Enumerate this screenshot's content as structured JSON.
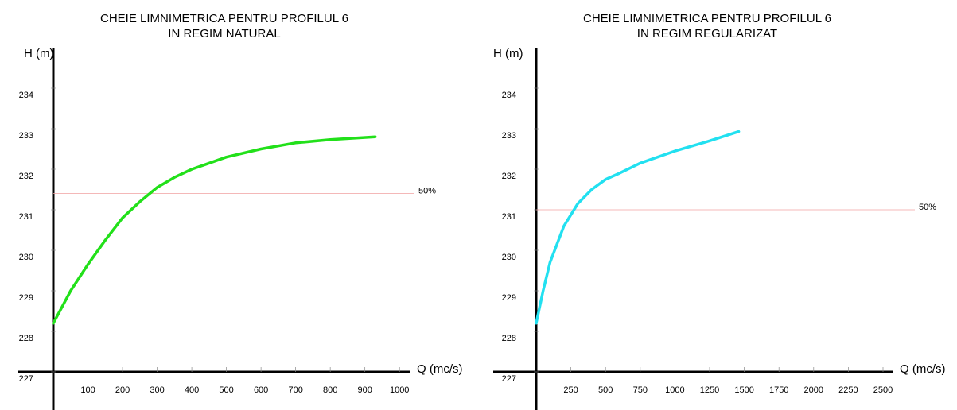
{
  "chart_data": [
    {
      "type": "line",
      "title": [
        "CHEIE LIMNIMETRICA PENTRU PROFILUL 6",
        "IN REGIM NATURAL"
      ],
      "ylabel": "H (m)",
      "xlabel": "Q (mc/s)",
      "xlim": [
        0,
        1100
      ],
      "ylim": [
        227,
        235
      ],
      "x_ticks": [
        100,
        200,
        300,
        400,
        500,
        600,
        700,
        800,
        900,
        1000
      ],
      "y_ticks": [
        227,
        228,
        229,
        230,
        231,
        232,
        233,
        234
      ],
      "series": [
        {
          "color": "#22e01a",
          "x": [
            0,
            25,
            50,
            100,
            150,
            200,
            250,
            300,
            350,
            400,
            500,
            600,
            700,
            800,
            930
          ],
          "y": [
            228.2,
            228.6,
            229.0,
            229.65,
            230.25,
            230.8,
            231.2,
            231.55,
            231.8,
            232.0,
            232.3,
            232.5,
            232.65,
            232.73,
            232.8
          ]
        }
      ],
      "reference_line": {
        "y": 231.4,
        "label": "50%",
        "color": "#f0a0a0"
      },
      "grid": false
    },
    {
      "type": "line",
      "title": [
        "CHEIE LIMNIMETRICA PENTRU PROFILUL 6",
        "IN REGIM REGULARIZAT"
      ],
      "ylabel": "H (m)",
      "xlabel": "Q (mc/s)",
      "xlim": [
        0,
        2750
      ],
      "ylim": [
        227,
        235
      ],
      "x_ticks": [
        250,
        500,
        750,
        1000,
        1250,
        1500,
        1750,
        2000,
        2250,
        2500
      ],
      "y_ticks": [
        227,
        228,
        229,
        230,
        231,
        232,
        233,
        234
      ],
      "series": [
        {
          "color": "#22e0f0",
          "x": [
            0,
            50,
            100,
            200,
            300,
            400,
            500,
            600,
            750,
            1000,
            1250,
            1460
          ],
          "y": [
            228.2,
            229.0,
            229.7,
            230.6,
            231.15,
            231.5,
            231.75,
            231.9,
            232.15,
            232.45,
            232.7,
            232.93
          ]
        }
      ],
      "reference_line": {
        "y": 231.0,
        "label": "50%",
        "color": "#f0a0a0"
      },
      "grid": false
    }
  ]
}
